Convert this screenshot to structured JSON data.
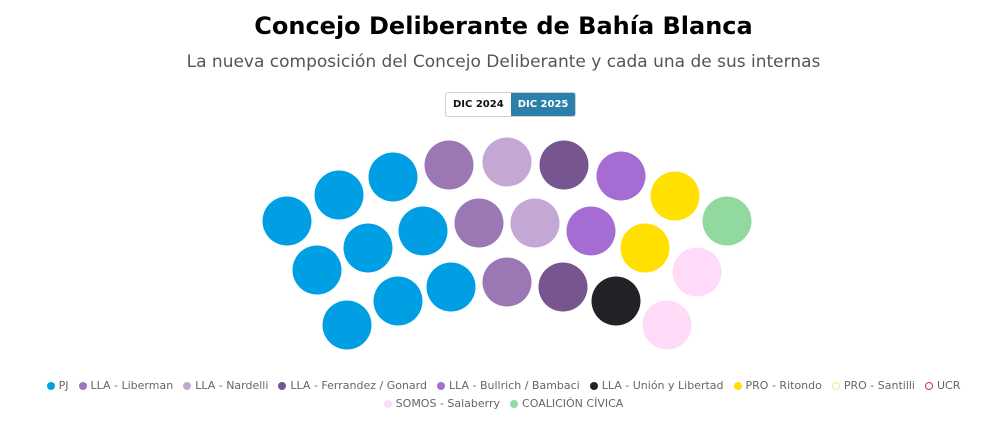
{
  "header": {
    "title": "Concejo Deliberante de Bahía Blanca",
    "subtitle": "La nueva composición del Concejo Deliberante y cada una de sus internas"
  },
  "toggle": {
    "options": [
      {
        "label": "DIC 2024",
        "active": false
      },
      {
        "label": "DIC 2025",
        "active": true
      }
    ]
  },
  "chart_data": {
    "type": "parliament",
    "title": "Concejo Deliberante de Bahía Blanca",
    "subtitle": "La nueva composición del Concejo Deliberante y cada una de sus internas",
    "total_seats": 24,
    "series": [
      {
        "name": "PJ",
        "seats": 9,
        "color": "#009fe3",
        "outline": false
      },
      {
        "name": "LLA - Liberman",
        "seats": 3,
        "color": "#9b78b4",
        "outline": false
      },
      {
        "name": "LLA - Nardelli",
        "seats": 2,
        "color": "#c3a8d6",
        "outline": false
      },
      {
        "name": "LLA - Ferrandez / Gonard",
        "seats": 2,
        "color": "#77558f",
        "outline": false
      },
      {
        "name": "LLA - Bullrich / Bambaci",
        "seats": 2,
        "color": "#a56dd4",
        "outline": false
      },
      {
        "name": "LLA - Unión y Libertad",
        "seats": 1,
        "color": "#222226",
        "outline": false
      },
      {
        "name": "PRO - Ritondo",
        "seats": 2,
        "color": "#ffe000",
        "outline": false
      },
      {
        "name": "PRO - Santilli",
        "seats": 0,
        "color": "#f3e58a",
        "outline": true
      },
      {
        "name": "UCR",
        "seats": 0,
        "color": "#d62d55",
        "outline": true
      },
      {
        "name": "SOMOS - Salaberry",
        "seats": 2,
        "color": "#ffdbf7",
        "outline": false
      },
      {
        "name": "COALICIÓN CÍVICA",
        "seats": 1,
        "color": "#92d9a0",
        "outline": false
      }
    ],
    "seat_order": [
      "PJ",
      "PJ",
      "PJ",
      "PJ",
      "PJ",
      "PJ",
      "PJ",
      "PJ",
      "PJ",
      "LLA - Liberman",
      "LLA - Liberman",
      "LLA - Liberman",
      "LLA - Nardelli",
      "LLA - Nardelli",
      "LLA - Ferrandez / Gonard",
      "LLA - Ferrandez / Gonard",
      "LLA - Bullrich / Bambaci",
      "LLA - Bullrich / Bambaci",
      "LLA - Unión y Libertad",
      "PRO - Ritondo",
      "PRO - Ritondo",
      "SOMOS - Salaberry",
      "SOMOS - Salaberry",
      "COALICIÓN CÍVICA"
    ],
    "legend_position": "bottom-center"
  }
}
